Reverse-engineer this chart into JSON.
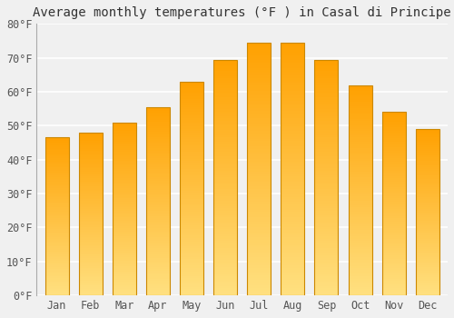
{
  "title": "Average monthly temperatures (°F ) in Casal di Principe",
  "months": [
    "Jan",
    "Feb",
    "Mar",
    "Apr",
    "May",
    "Jun",
    "Jul",
    "Aug",
    "Sep",
    "Oct",
    "Nov",
    "Dec"
  ],
  "values": [
    46.5,
    48,
    51,
    55.5,
    63,
    69.5,
    74.5,
    74.5,
    69.5,
    62,
    54,
    49
  ],
  "bar_color_bottom": "#FFE080",
  "bar_color_top": "#FFA000",
  "bar_edge_color": "#CC8800",
  "ylim": [
    0,
    80
  ],
  "yticks": [
    0,
    10,
    20,
    30,
    40,
    50,
    60,
    70,
    80
  ],
  "ytick_labels": [
    "0°F",
    "10°F",
    "20°F",
    "30°F",
    "40°F",
    "50°F",
    "60°F",
    "70°F",
    "80°F"
  ],
  "background_color": "#f0f0f0",
  "grid_color": "#ffffff",
  "title_fontsize": 10,
  "tick_fontsize": 8.5,
  "bar_width": 0.7
}
